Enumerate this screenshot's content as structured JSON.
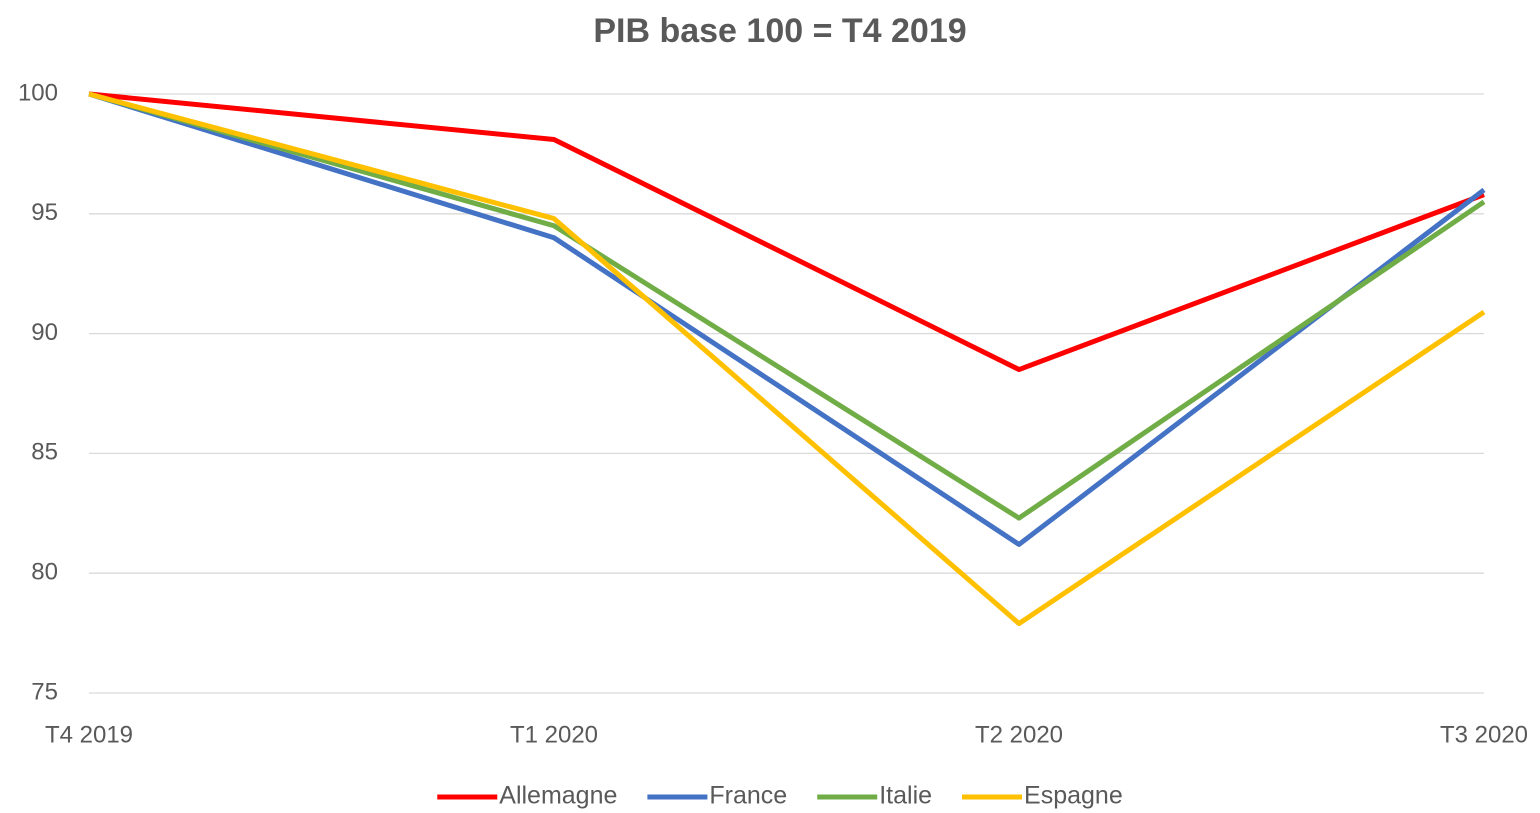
{
  "chart_data": {
    "type": "line",
    "title": "PIB base 100 = T4 2019",
    "categories": [
      "T4 2019",
      "T1 2020",
      "T2 2020",
      "T3 2020"
    ],
    "series": [
      {
        "name": "Allemagne",
        "color": "#ff0000",
        "values": [
          100,
          98.1,
          88.5,
          95.8
        ]
      },
      {
        "name": "France",
        "color": "#4472c4",
        "values": [
          100,
          94.0,
          81.2,
          96.0
        ]
      },
      {
        "name": "Italie",
        "color": "#70ad47",
        "values": [
          100,
          94.5,
          82.3,
          95.5
        ]
      },
      {
        "name": "Espagne",
        "color": "#ffc000",
        "values": [
          100,
          94.8,
          77.9,
          90.9
        ]
      }
    ],
    "ylim": [
      75,
      100
    ],
    "yticks": [
      75,
      80,
      85,
      90,
      95,
      100
    ],
    "grid": true,
    "legend": "bottom"
  }
}
